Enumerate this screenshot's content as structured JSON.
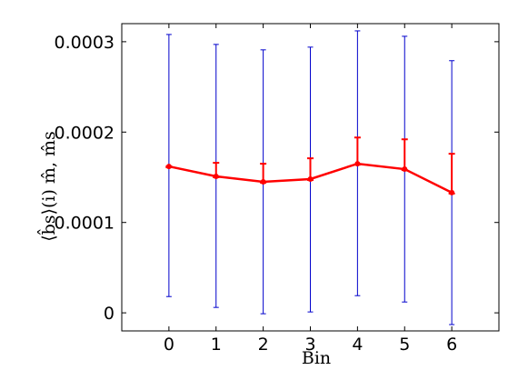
{
  "chart_data": {
    "type": "line",
    "title": "",
    "xlabel": "Bin",
    "ylabel": "⟨b̂s⟩(i) m̂, m̂s",
    "xlim": [
      -1,
      7
    ],
    "ylim": [
      -2e-05,
      0.00032
    ],
    "x_ticks": [
      "0",
      "1",
      "2",
      "3",
      "4",
      "5",
      "6"
    ],
    "y_ticks": [
      "0",
      "0.0001",
      "0.0002",
      "0.0003"
    ],
    "grid": false,
    "legend": "none",
    "series": [
      {
        "x": [
          0,
          1,
          2,
          3,
          4,
          5,
          6
        ],
        "y": [
          0.000162,
          0.000151,
          0.000145,
          0.000148,
          0.000165,
          0.000159,
          0.000133
        ],
        "yerr_low": [
          0.000161,
          0.00015,
          0.000144,
          0.000147,
          0.000164,
          0.000158,
          0.000132
        ],
        "yerr_high": [
          0.000162,
          0.000166,
          0.000165,
          0.000171,
          0.000194,
          0.000192,
          0.000176
        ],
        "color": "#ff0000"
      },
      {
        "x": [
          0,
          1,
          2,
          3,
          4,
          5,
          6
        ],
        "y": [
          0.000162,
          0.000151,
          0.000145,
          0.000148,
          0.000165,
          0.000159,
          0.000133
        ],
        "yerr_low": [
          1.8e-05,
          6e-06,
          -1e-06,
          1e-06,
          1.9e-05,
          1.2e-05,
          -1.3e-05
        ],
        "yerr_high": [
          0.000308,
          0.000297,
          0.000291,
          0.000294,
          0.000312,
          0.000306,
          0.000279
        ],
        "color": "#0000cc"
      }
    ]
  }
}
